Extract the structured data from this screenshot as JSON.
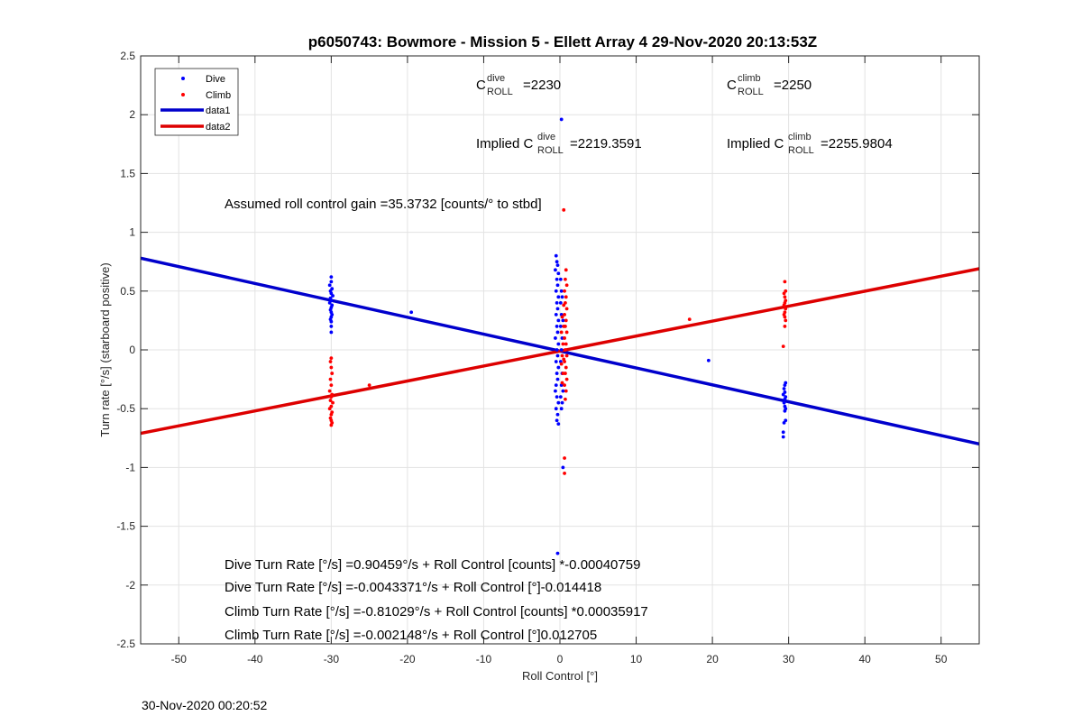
{
  "chart_data": {
    "type": "scatter",
    "title": "p6050743: Bowmore - Mission 5 - Ellett Array 4 29-Nov-2020 20:13:53Z",
    "xlabel": "Roll Control [°]",
    "ylabel": "Turn rate [°/s] (starboard positive)",
    "xlim": [
      -55,
      55
    ],
    "ylim": [
      -2.5,
      2.5
    ],
    "xticks": [
      -50,
      -40,
      -30,
      -20,
      -10,
      0,
      10,
      20,
      30,
      40,
      50
    ],
    "yticks": [
      -2.5,
      -2,
      -1.5,
      -1,
      -0.5,
      0,
      0.5,
      1,
      1.5,
      2,
      2.5
    ],
    "grid": true,
    "legend_position": "top-left",
    "legend": [
      "Dive",
      "Climb",
      "data1",
      "data2"
    ],
    "colors": {
      "dive": "#0000ff",
      "climb": "#ff0000",
      "data1": "#0000cc",
      "data2": "#dd0000"
    },
    "series": [
      {
        "name": "Dive",
        "kind": "scatter",
        "points": [
          [
            -30,
            0.62
          ],
          [
            -30,
            0.58
          ],
          [
            -30.2,
            0.55
          ],
          [
            -29.9,
            0.52
          ],
          [
            -30.1,
            0.5
          ],
          [
            -30,
            0.48
          ],
          [
            -29.8,
            0.46
          ],
          [
            -30.1,
            0.44
          ],
          [
            -30,
            0.42
          ],
          [
            -30.2,
            0.4
          ],
          [
            -29.9,
            0.38
          ],
          [
            -30,
            0.36
          ],
          [
            -30.1,
            0.34
          ],
          [
            -30,
            0.32
          ],
          [
            -29.9,
            0.3
          ],
          [
            -30,
            0.28
          ],
          [
            -30.1,
            0.26
          ],
          [
            -30,
            0.24
          ],
          [
            -30,
            0.2
          ],
          [
            -30,
            0.15
          ],
          [
            -19.5,
            0.32
          ],
          [
            29.5,
            -0.3
          ],
          [
            29.6,
            -0.28
          ],
          [
            29.4,
            -0.33
          ],
          [
            29.5,
            -0.36
          ],
          [
            29.3,
            -0.38
          ],
          [
            29.6,
            -0.4
          ],
          [
            29.5,
            -0.42
          ],
          [
            29.4,
            -0.45
          ],
          [
            29.5,
            -0.48
          ],
          [
            29.6,
            -0.5
          ],
          [
            29.5,
            -0.52
          ],
          [
            29.6,
            -0.6
          ],
          [
            29.4,
            -0.62
          ],
          [
            29.3,
            -0.7
          ],
          [
            29.3,
            -0.74
          ],
          [
            19.5,
            -0.09
          ],
          [
            -0.5,
            0.8
          ],
          [
            -0.4,
            0.75
          ],
          [
            -0.3,
            0.72
          ],
          [
            -0.6,
            0.68
          ],
          [
            -0.2,
            0.65
          ],
          [
            -0.4,
            0.6
          ],
          [
            -0.3,
            0.55
          ],
          [
            -0.5,
            0.5
          ],
          [
            -0.2,
            0.45
          ],
          [
            -0.4,
            0.4
          ],
          [
            -0.3,
            0.35
          ],
          [
            -0.5,
            0.3
          ],
          [
            -0.2,
            0.25
          ],
          [
            -0.4,
            0.2
          ],
          [
            -0.3,
            0.15
          ],
          [
            -0.6,
            0.1
          ],
          [
            -0.2,
            0.05
          ],
          [
            -0.4,
            0.0
          ],
          [
            -0.3,
            -0.05
          ],
          [
            -0.5,
            -0.1
          ],
          [
            -0.2,
            -0.15
          ],
          [
            -0.4,
            -0.2
          ],
          [
            -0.3,
            -0.25
          ],
          [
            -0.5,
            -0.3
          ],
          [
            -0.6,
            -0.35
          ],
          [
            -0.4,
            -0.4
          ],
          [
            -0.2,
            -0.45
          ],
          [
            -0.5,
            -0.5
          ],
          [
            -0.3,
            -0.55
          ],
          [
            -0.4,
            -0.6
          ],
          [
            -0.2,
            -0.63
          ],
          [
            0.1,
            0.6
          ],
          [
            0.2,
            0.5
          ],
          [
            0.3,
            0.45
          ],
          [
            0.1,
            0.4
          ],
          [
            0.2,
            0.3
          ],
          [
            0.4,
            0.25
          ],
          [
            0.1,
            0.2
          ],
          [
            0.3,
            0.1
          ],
          [
            0.2,
            0.0
          ],
          [
            0.1,
            -0.1
          ],
          [
            0.3,
            -0.2
          ],
          [
            0.2,
            -0.3
          ],
          [
            0.4,
            -0.35
          ],
          [
            0.1,
            -0.4
          ],
          [
            0.3,
            -0.45
          ],
          [
            0.2,
            -0.5
          ],
          [
            0.2,
            1.96
          ],
          [
            0.4,
            -1.0
          ],
          [
            -0.3,
            -1.73
          ]
        ]
      },
      {
        "name": "Climb",
        "kind": "scatter",
        "points": [
          [
            -30,
            -0.07
          ],
          [
            -30.1,
            -0.1
          ],
          [
            -30,
            -0.15
          ],
          [
            -29.9,
            -0.2
          ],
          [
            -30.1,
            -0.25
          ],
          [
            -30,
            -0.3
          ],
          [
            -30.2,
            -0.35
          ],
          [
            -29.9,
            -0.38
          ],
          [
            -30,
            -0.4
          ],
          [
            -30.1,
            -0.43
          ],
          [
            -29.8,
            -0.45
          ],
          [
            -30,
            -0.48
          ],
          [
            -30.2,
            -0.5
          ],
          [
            -29.9,
            -0.53
          ],
          [
            -30,
            -0.55
          ],
          [
            -30.1,
            -0.58
          ],
          [
            -30,
            -0.6
          ],
          [
            -29.9,
            -0.62
          ],
          [
            -30,
            -0.64
          ],
          [
            -25,
            -0.3
          ],
          [
            29.5,
            0.58
          ],
          [
            29.6,
            0.5
          ],
          [
            29.4,
            0.48
          ],
          [
            29.5,
            0.45
          ],
          [
            29.6,
            0.42
          ],
          [
            29.5,
            0.4
          ],
          [
            29.4,
            0.38
          ],
          [
            29.6,
            0.35
          ],
          [
            29.5,
            0.32
          ],
          [
            29.4,
            0.3
          ],
          [
            29.5,
            0.28
          ],
          [
            29.6,
            0.25
          ],
          [
            29.5,
            0.2
          ],
          [
            29.3,
            0.03
          ],
          [
            17,
            0.26
          ],
          [
            0.8,
            0.68
          ],
          [
            0.7,
            0.6
          ],
          [
            0.9,
            0.55
          ],
          [
            0.6,
            0.5
          ],
          [
            0.8,
            0.45
          ],
          [
            0.7,
            0.4
          ],
          [
            0.9,
            0.35
          ],
          [
            0.6,
            0.3
          ],
          [
            0.8,
            0.25
          ],
          [
            0.7,
            0.2
          ],
          [
            0.9,
            0.15
          ],
          [
            0.6,
            0.1
          ],
          [
            0.8,
            0.05
          ],
          [
            0.7,
            0.0
          ],
          [
            0.9,
            -0.05
          ],
          [
            0.6,
            -0.1
          ],
          [
            0.8,
            -0.15
          ],
          [
            0.7,
            -0.2
          ],
          [
            0.9,
            -0.25
          ],
          [
            0.6,
            -0.3
          ],
          [
            0.8,
            -0.35
          ],
          [
            0.7,
            -0.42
          ],
          [
            0.3,
            0.28
          ],
          [
            0.2,
            0.15
          ],
          [
            0.4,
            0.05
          ],
          [
            0.3,
            -0.05
          ],
          [
            0.2,
            -0.12
          ],
          [
            0.4,
            -0.2
          ],
          [
            0.3,
            -0.28
          ],
          [
            0.5,
            0.2
          ],
          [
            0.5,
            -0.08
          ],
          [
            0.5,
            0.38
          ],
          [
            0.5,
            1.19
          ],
          [
            0.6,
            -0.92
          ],
          [
            0.6,
            -1.05
          ]
        ]
      },
      {
        "name": "data1",
        "kind": "line",
        "points": [
          [
            -55,
            0.78
          ],
          [
            55,
            -0.8
          ]
        ]
      },
      {
        "name": "data2",
        "kind": "line",
        "points": [
          [
            -55,
            -0.71
          ],
          [
            55,
            0.69
          ]
        ]
      }
    ],
    "annotations": {
      "c_dive": {
        "base": "C",
        "sup": "dive",
        "sub": "ROLL",
        "value": "=2230"
      },
      "c_climb": {
        "base": "C",
        "sup": "climb",
        "sub": "ROLL",
        "value": "=2250"
      },
      "implied_dive": {
        "prefix": "Implied C",
        "sup": "dive",
        "sub": "ROLL",
        "value": "=2219.3591"
      },
      "implied_climb": {
        "prefix": "Implied C",
        "sup": "climb",
        "sub": "ROLL",
        "value": "=2255.9804"
      },
      "gain": "Assumed roll control gain =35.3732 [counts/° to stbd]",
      "eq1": "Dive Turn Rate [°/s] =0.90459°/s + Roll Control [counts] *-0.00040759",
      "eq2": "Dive Turn Rate [°/s] =-0.0043371°/s + Roll Control [°]-0.014418",
      "eq3": "Climb Turn Rate [°/s] =-0.81029°/s + Roll Control [counts] *0.00035917",
      "eq4": "Climb Turn Rate [°/s] =-0.002148°/s + Roll Control [°]0.012705"
    },
    "footer": "30-Nov-2020 00:20:52"
  }
}
